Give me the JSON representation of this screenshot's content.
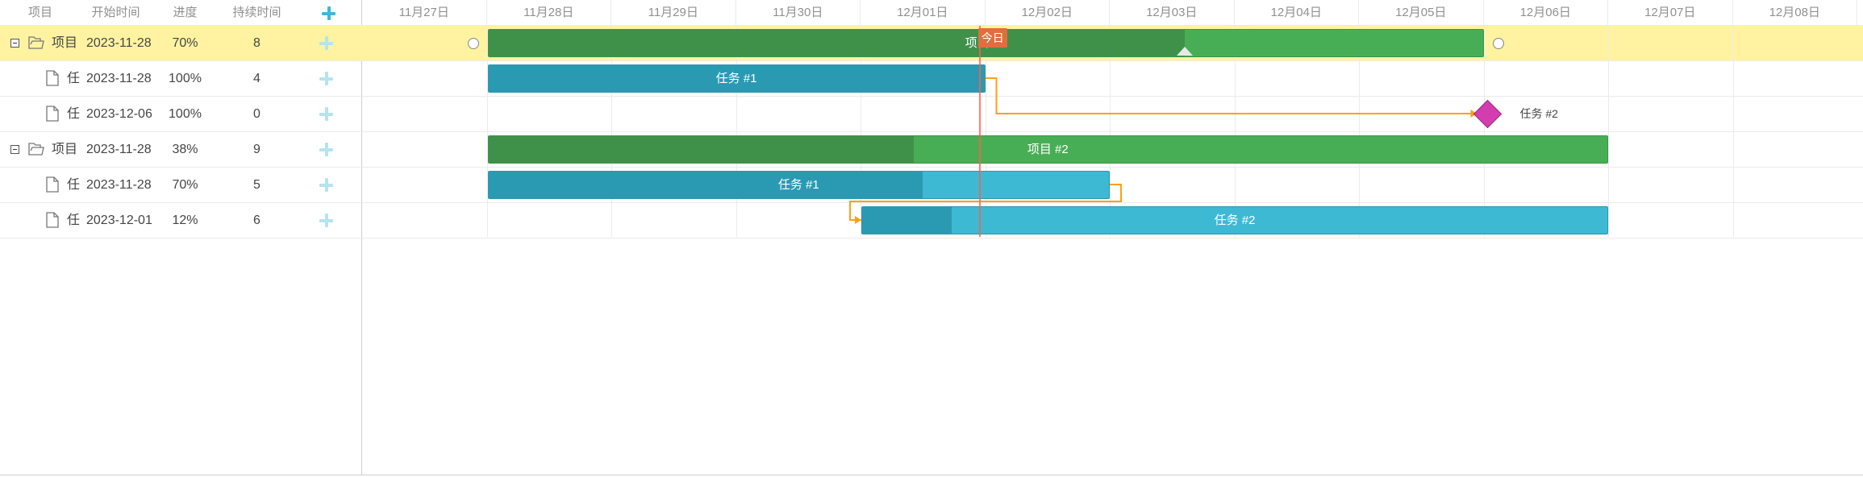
{
  "grid": {
    "columns": [
      {
        "key": "text",
        "label": "项目"
      },
      {
        "key": "start",
        "label": "开始时间"
      },
      {
        "key": "progress",
        "label": "进度"
      },
      {
        "key": "duration",
        "label": "持续时间"
      }
    ],
    "add_icon": "plus-icon",
    "rows": [
      {
        "type": "project",
        "text": "项目",
        "start": "2023-11-28",
        "progress": "70%",
        "duration": "8",
        "selected": true
      },
      {
        "type": "task",
        "text": "任",
        "start": "2023-11-28",
        "progress": "100%",
        "duration": "4"
      },
      {
        "type": "task",
        "text": "任",
        "start": "2023-12-06",
        "progress": "100%",
        "duration": "0"
      },
      {
        "type": "project",
        "text": "项目",
        "start": "2023-11-28",
        "progress": "38%",
        "duration": "9"
      },
      {
        "type": "task",
        "text": "任",
        "start": "2023-11-28",
        "progress": "70%",
        "duration": "5"
      },
      {
        "type": "task",
        "text": "任",
        "start": "2023-12-01",
        "progress": "12%",
        "duration": "6"
      }
    ]
  },
  "timeline": {
    "scale": [
      "11月27日",
      "11月28日",
      "11月29日",
      "11月30日",
      "12月01日",
      "12月02日",
      "12月03日",
      "12月04日",
      "12月05日",
      "12月06日",
      "12月07日",
      "12月08日"
    ],
    "today_label": "今日",
    "today_day_offset": 4.95
  },
  "bars": [
    {
      "row": 0,
      "type": "project",
      "label": "项目 #1",
      "start_day": 1,
      "duration_days": 8,
      "progress": 0.7
    },
    {
      "row": 1,
      "type": "task",
      "label": "任务 #1",
      "start_day": 1,
      "duration_days": 4,
      "progress": 1.0
    },
    {
      "row": 2,
      "type": "milestone",
      "label": "任务 #2",
      "start_day": 9,
      "duration_days": 0
    },
    {
      "row": 3,
      "type": "project",
      "label": "项目 #2",
      "start_day": 1,
      "duration_days": 9,
      "progress": 0.38
    },
    {
      "row": 4,
      "type": "task",
      "label": "任务 #1",
      "start_day": 1,
      "duration_days": 5,
      "progress": 0.7
    },
    {
      "row": 5,
      "type": "task",
      "label": "任务 #2",
      "start_day": 4,
      "duration_days": 6,
      "progress": 0.12
    }
  ],
  "colors": {
    "selected_row": "#fff3a1",
    "project_bar": "#48ae55",
    "task_bar": "#3db9d3",
    "milestone": "#d33daf",
    "link": "#ffa011",
    "today": "#ff5e4e"
  }
}
